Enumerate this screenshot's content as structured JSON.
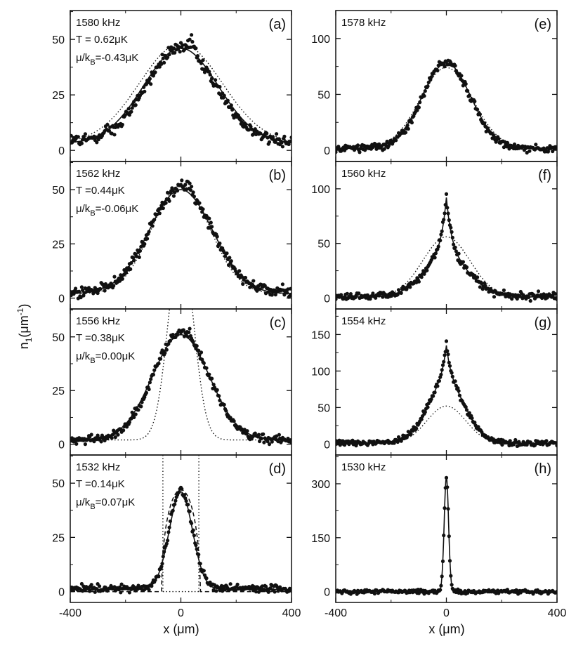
{
  "chart_data": {
    "type": "scatter",
    "y_axis_title": "n",
    "y_axis_title_sub": "1",
    "y_axis_title_unit": "(μm",
    "y_axis_title_sup": "-1",
    "y_axis_title_close": ")",
    "x_axis_title": "x (μm)",
    "x_tick_labels": [
      "-400",
      "0",
      "400"
    ],
    "x_ticks": [
      -400,
      0,
      400
    ],
    "xlim": [
      -400,
      400
    ],
    "panels": [
      {
        "letter": "(a)",
        "column": 0,
        "row": 0,
        "freq": "1580 kHz",
        "T": "T     = 0.62μK",
        "mu_main": "μ/k",
        "mu_sub": "B",
        "mu_rest": "=-0.43μK",
        "ylim": [
          -5,
          63
        ],
        "y_ticks": [
          0,
          25,
          50
        ],
        "y_tick_labels": [
          "0",
          "25",
          "50"
        ],
        "peak": 46,
        "width": 125,
        "tail": 4,
        "noise": 2.0,
        "bump_x": 40,
        "bump_h": 5,
        "solid": {
          "peak": 46,
          "width": 135,
          "tail": 3
        },
        "dotted": {
          "peak": 48,
          "width": 150,
          "tail": 3
        },
        "dashed": null
      },
      {
        "letter": "(b)",
        "column": 0,
        "row": 1,
        "freq": "1562 kHz",
        "T": "T     =0.44μK",
        "mu_main": "μ/k",
        "mu_sub": "B",
        "mu_rest": "=-0.06μK",
        "ylim": [
          -5,
          63
        ],
        "y_ticks": [
          0,
          25,
          50
        ],
        "y_tick_labels": [
          "0",
          "25",
          "50"
        ],
        "peak": 51,
        "width": 110,
        "tail": 3,
        "noise": 2.0,
        "bump_x": 30,
        "bump_h": 3,
        "solid": {
          "peak": 50,
          "width": 115,
          "tail": 2
        },
        "dotted": {
          "peak": 52,
          "width": 105,
          "tail": 2
        },
        "dashed": null
      },
      {
        "letter": "(c)",
        "column": 0,
        "row": 2,
        "freq": "1556 kHz",
        "T": "T     =0.38μK",
        "mu_main": "μ/k",
        "mu_sub": "B",
        "mu_rest": "=0.00μK",
        "ylim": [
          -5,
          63
        ],
        "y_ticks": [
          0,
          25,
          50
        ],
        "y_tick_labels": [
          "0",
          "25",
          "50"
        ],
        "peak": 52,
        "width": 100,
        "tail": 2,
        "noise": 1.6,
        "bump_x": 30,
        "bump_h": 2,
        "solid": {
          "peak": 51,
          "width": 103,
          "tail": 2
        },
        "dotted": {
          "peak": 95,
          "width": 45,
          "tail": 2
        },
        "dashed": null
      },
      {
        "letter": "(d)",
        "column": 0,
        "row": 3,
        "freq": "1532 kHz",
        "T": "T     =0.14μK",
        "mu_main": "μ/k",
        "mu_sub": "B",
        "mu_rest": "=0.07μK",
        "ylim": [
          -5,
          63
        ],
        "y_ticks": [
          0,
          25,
          50
        ],
        "y_tick_labels": [
          "0",
          "25",
          "50"
        ],
        "peak": 47,
        "width": 42,
        "tail": 1.5,
        "noise": 1.3,
        "bump_x": 0,
        "bump_h": 0,
        "solid": {
          "peak": 46,
          "width": 42,
          "tail": 1
        },
        "dotted": {
          "vertical_x": [
            -65,
            65
          ]
        },
        "dashed": {
          "peak": 47,
          "halfwidth": 70
        }
      },
      {
        "letter": "(e)",
        "column": 1,
        "row": 0,
        "freq": "1578 kHz",
        "ylim": [
          -10,
          125
        ],
        "y_ticks": [
          0,
          50,
          100
        ],
        "y_tick_labels": [
          "0",
          "50",
          "100"
        ],
        "peak": 79,
        "width": 85,
        "tail": 2,
        "noise": 2.5,
        "bump_x": 0,
        "bump_h": 0,
        "solid": {
          "peak": 78,
          "width": 88,
          "tail": 2
        },
        "dotted": {
          "peak": 74,
          "width": 95,
          "tail": 2
        },
        "dashed": null
      },
      {
        "letter": "(f)",
        "column": 1,
        "row": 1,
        "freq": "1560 kHz",
        "ylim": [
          -10,
          125
        ],
        "y_ticks": [
          0,
          50,
          100
        ],
        "y_tick_labels": [
          "0",
          "50",
          "100"
        ],
        "peak": 93,
        "width": 60,
        "tail": 1.5,
        "noise": 2.5,
        "bump_x": 0,
        "bump_h": 0,
        "cusp": 35,
        "solid": {
          "peak": 92,
          "width": 60,
          "tail": 1
        },
        "dotted": {
          "peak": 56,
          "width": 85,
          "tail": 1
        },
        "dashed": null
      },
      {
        "letter": "(g)",
        "column": 1,
        "row": 2,
        "freq": "1554 kHz",
        "ylim": [
          -15,
          185
        ],
        "y_ticks": [
          0,
          50,
          100,
          150
        ],
        "y_tick_labels": [
          "0",
          "50",
          "100",
          "150"
        ],
        "peak": 140,
        "width": 50,
        "tail": 1.5,
        "noise": 3.0,
        "bump_x": 0,
        "bump_h": 0,
        "cusp": 80,
        "solid": {
          "peak": 135,
          "width": 50,
          "tail": 1
        },
        "dotted": {
          "peak": 52,
          "width": 70,
          "tail": 1
        },
        "dashed": null
      },
      {
        "letter": "(h)",
        "column": 1,
        "row": 3,
        "freq": "1530 kHz",
        "ylim": [
          -30,
          380
        ],
        "y_ticks": [
          0,
          150,
          300
        ],
        "y_tick_labels": [
          "0",
          "150",
          "300"
        ],
        "peak": 318,
        "width": 8,
        "tail": 0,
        "noise": 4.0,
        "bump_x": 0,
        "bump_h": 0,
        "solid": {
          "peak": 318,
          "width": 8,
          "tail": 0
        },
        "dotted": null,
        "dashed": null
      }
    ]
  }
}
